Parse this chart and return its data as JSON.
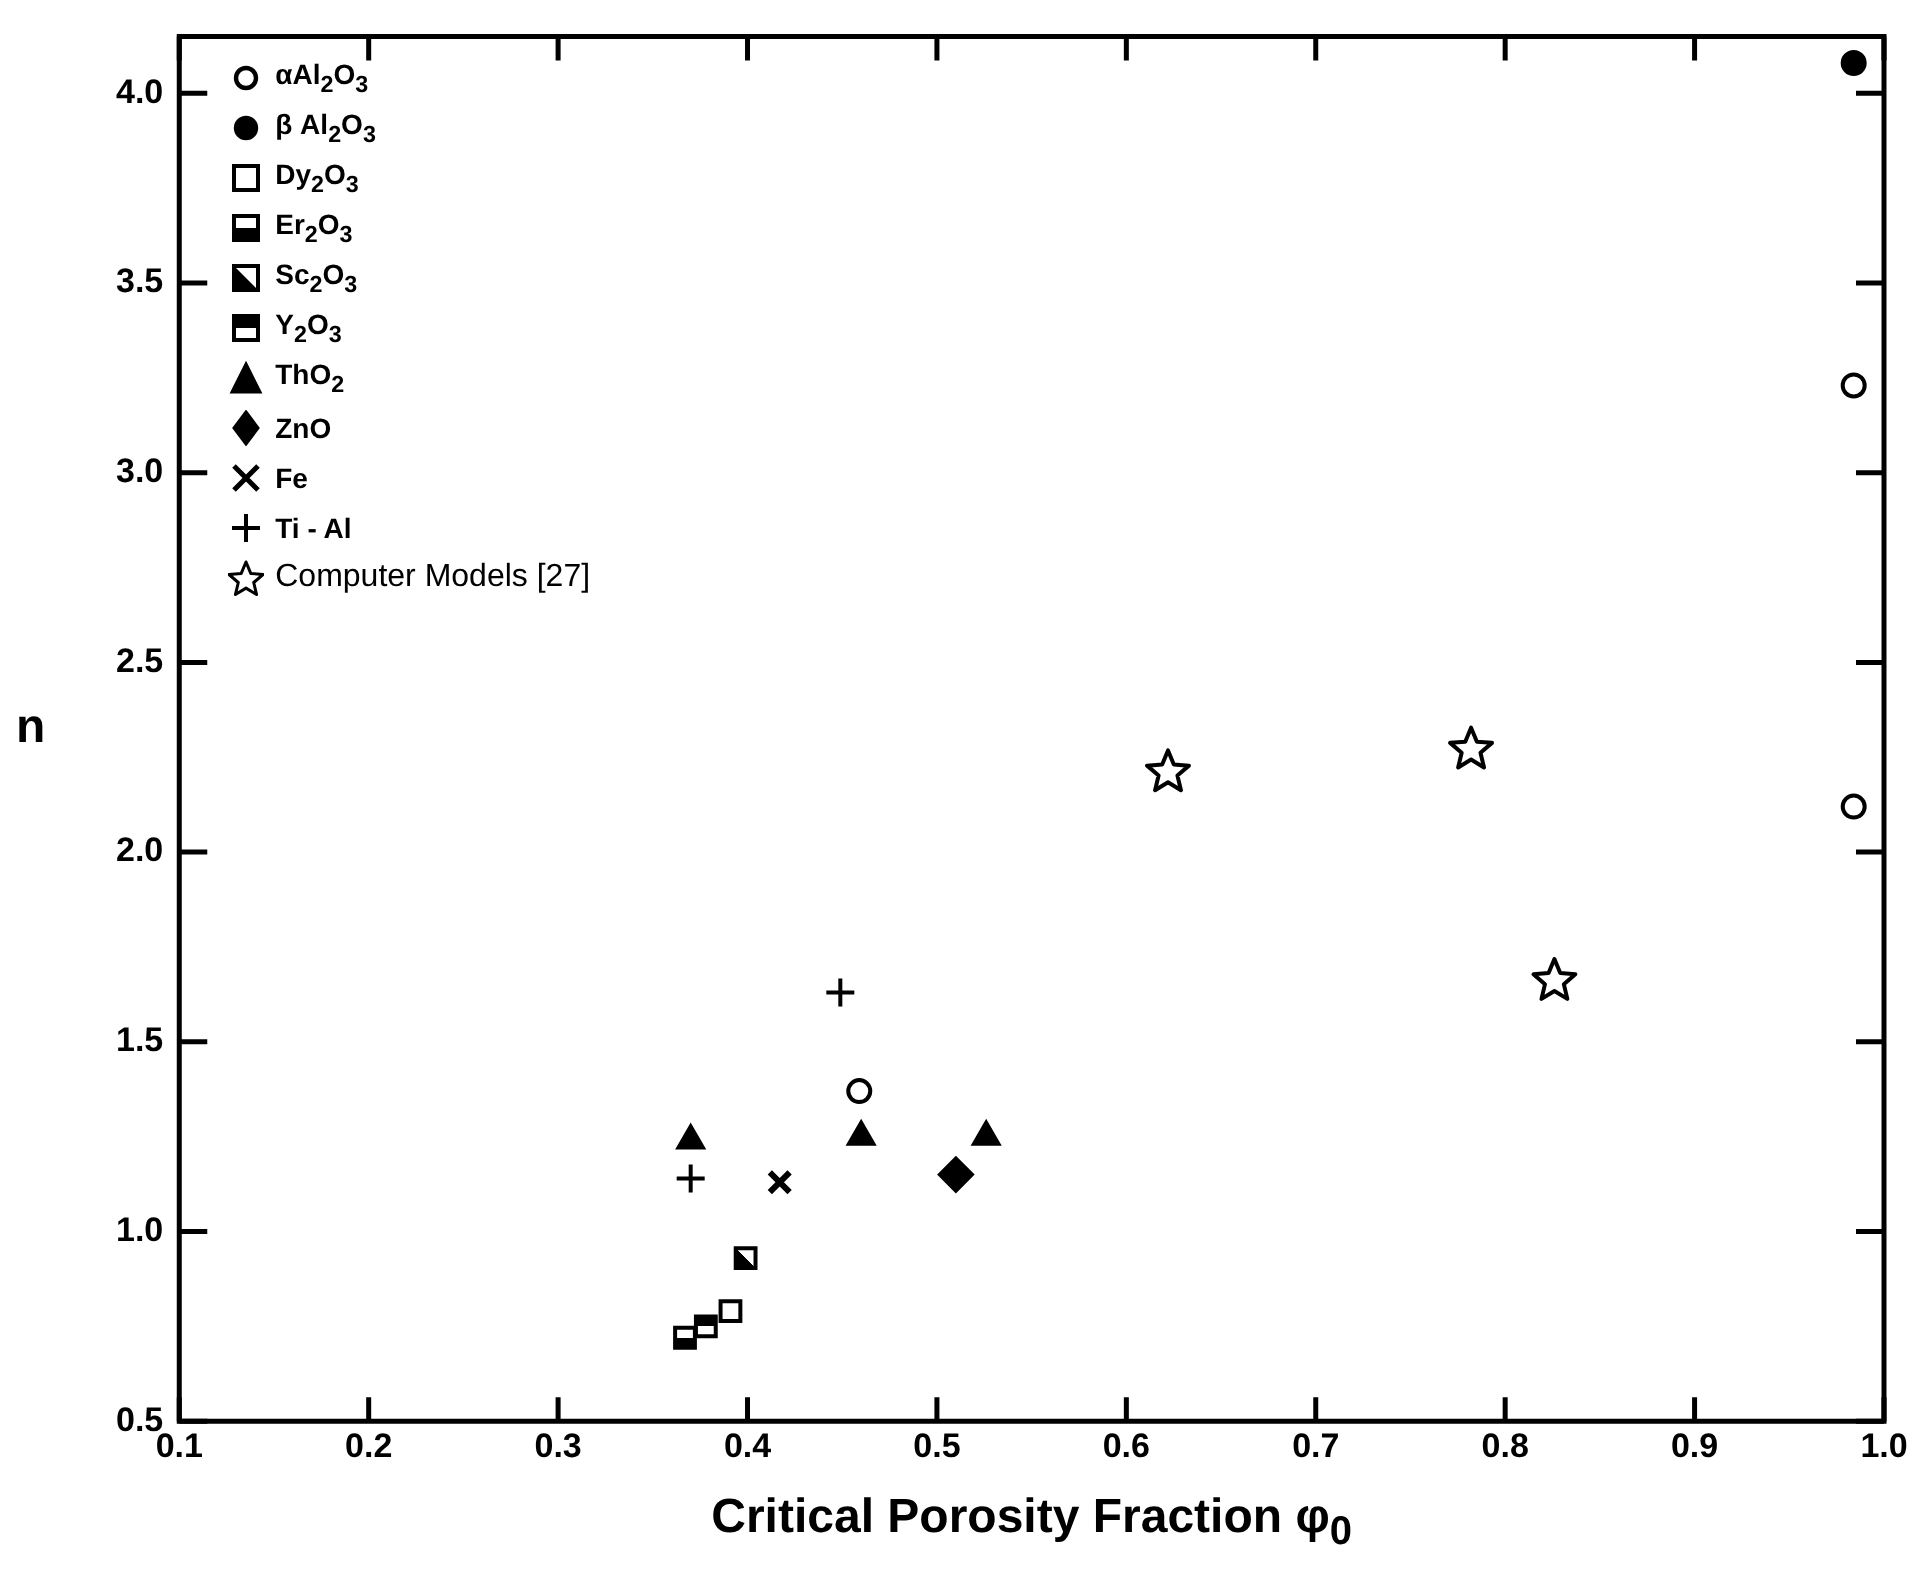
{
  "chart_data": {
    "type": "scatter",
    "xlabel": "Critical Porosity Fraction φ$_{0}$",
    "ylabel": "n",
    "xlim": [
      0.1,
      1.0
    ],
    "ylim": [
      0.5,
      4.15
    ],
    "xticks": [
      0.1,
      0.2,
      0.3,
      0.4,
      0.5,
      0.6,
      0.7,
      0.8,
      0.9,
      {
        "value": 1,
        "label": "1.0"
      }
    ],
    "yticks": [
      0.5,
      {
        "value": 1,
        "label": "1.0"
      },
      1.5,
      {
        "value": 2,
        "label": "2.0"
      },
      2.5,
      {
        "value": 3,
        "label": "3.0"
      },
      3.5,
      {
        "value": 4,
        "label": "4.0"
      }
    ],
    "grid": false,
    "legend": "top left",
    "series": [
      {
        "name": "αAl$_{2}$O$_{3}$",
        "color": "#000000",
        "marker": "circle-open",
        "x": [
          0.459,
          0.984,
          0.984
        ],
        "values": [
          1.37,
          3.23,
          2.12
        ]
      },
      {
        "name": "β Al$_{2}$O$_{3}$",
        "color": "#000000",
        "marker": "circle",
        "x": [
          0.984
        ],
        "values": [
          4.08
        ]
      },
      {
        "name": "Dy$_{2}$O$_{3}$",
        "color": "#000000",
        "marker": "square-open",
        "x": [
          0.391
        ],
        "values": [
          0.79
        ]
      },
      {
        "name": "Er$_{2}$O$_{3}$",
        "color": "#000000",
        "marker": "square-half-bottom",
        "x": [
          0.367
        ],
        "values": [
          0.72
        ]
      },
      {
        "name": "Sc$_{2}$O$_{3}$",
        "color": "#000000",
        "marker": "square-half-diagonal",
        "x": [
          0.399
        ],
        "values": [
          0.93
        ]
      },
      {
        "name": "Y$_{2}$O$_{3}$",
        "color": "#000000",
        "marker": "square-half-top",
        "x": [
          0.378
        ],
        "values": [
          0.75
        ]
      },
      {
        "name": "ThO$_{2}$",
        "color": "#000000",
        "marker": "triangle",
        "x": [
          0.37,
          0.46,
          0.526
        ],
        "values": [
          1.24,
          1.25,
          1.25
        ]
      },
      {
        "name": "ZnO",
        "color": "#000000",
        "marker": "diamond",
        "x": [
          0.51
        ],
        "values": [
          1.15
        ]
      },
      {
        "name": "Fe",
        "color": "#000000",
        "marker": "x",
        "x": [
          0.417
        ],
        "values": [
          1.13
        ]
      },
      {
        "name": "Ti - Al",
        "color": "#000000",
        "marker": "cross",
        "x": [
          0.449,
          0.37
        ],
        "values": [
          1.63,
          1.14
        ]
      },
      {
        "name": "Computer Models [27]",
        "color": "#000000",
        "marker": "star-open",
        "x": [
          0.622,
          0.782,
          0.826
        ],
        "values": [
          2.21,
          2.27,
          1.66
        ]
      }
    ]
  }
}
